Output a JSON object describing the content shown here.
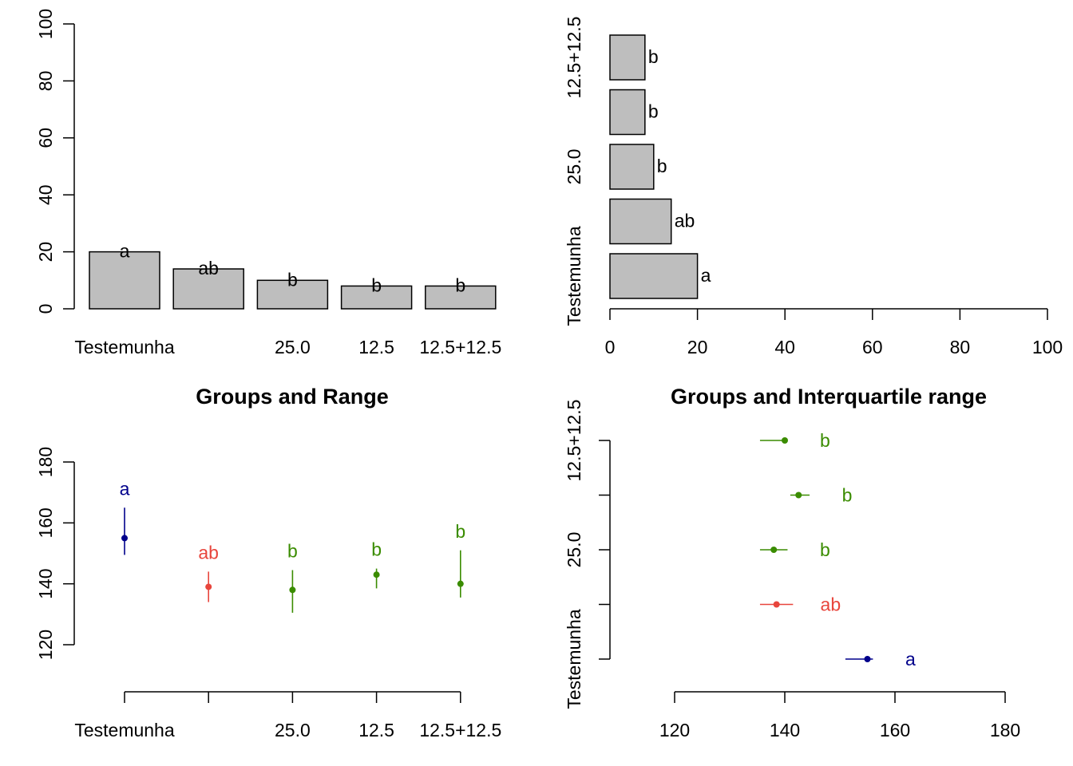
{
  "chart_data": [
    {
      "type": "bar",
      "orientation": "vertical",
      "categories": [
        "Testemunha",
        "",
        "25.0",
        "12.5",
        "12.5+12.5"
      ],
      "values": [
        20,
        14,
        10,
        8,
        8
      ],
      "groups": [
        "a",
        "ab",
        "b",
        "b",
        "b"
      ],
      "ylim": [
        0,
        100
      ],
      "yticks": [
        "0",
        "20",
        "40",
        "60",
        "80",
        "100"
      ],
      "bar_color": "#bebebe"
    },
    {
      "type": "bar",
      "orientation": "horizontal",
      "categories": [
        "Testemunha",
        "",
        "25.0",
        "",
        "12.5+12.5"
      ],
      "values": [
        20,
        14,
        10,
        8,
        8
      ],
      "groups": [
        "a",
        "ab",
        "b",
        "b",
        "b"
      ],
      "xlim": [
        0,
        100
      ],
      "xticks": [
        "0",
        "20",
        "40",
        "60",
        "80",
        "100"
      ],
      "bar_color": "#bebebe"
    },
    {
      "type": "scatter",
      "title": "Groups and Range",
      "categories": [
        "Testemunha",
        "",
        "25.0",
        "12.5",
        "12.5+12.5"
      ],
      "points": [
        {
          "value": 155,
          "low": 149.5,
          "high": 165,
          "group": "a",
          "color": "#00008b"
        },
        {
          "value": 139,
          "low": 134,
          "high": 144,
          "group": "ab",
          "color": "#e8453c"
        },
        {
          "value": 138,
          "low": 130.5,
          "high": 144.5,
          "group": "b",
          "color": "#3a8c00"
        },
        {
          "value": 143,
          "low": 138.5,
          "high": 145,
          "group": "b",
          "color": "#3a8c00"
        },
        {
          "value": 140,
          "low": 135.5,
          "high": 151,
          "group": "b",
          "color": "#3a8c00"
        }
      ],
      "ylim": [
        120,
        180
      ],
      "yticks": [
        "120",
        "140",
        "160",
        "180"
      ]
    },
    {
      "type": "scatter",
      "orientation": "horizontal",
      "title": "Groups and Interquartile range",
      "categories": [
        "Testemunha",
        "",
        "25.0",
        "",
        "12.5+12.5"
      ],
      "points": [
        {
          "value": 155,
          "low": 151,
          "high": 156,
          "group": "a",
          "color": "#00008b"
        },
        {
          "value": 138.5,
          "low": 135.5,
          "high": 141.5,
          "group": "ab",
          "color": "#e8453c"
        },
        {
          "value": 138,
          "low": 135.5,
          "high": 140.5,
          "group": "b",
          "color": "#3a8c00"
        },
        {
          "value": 142.5,
          "low": 141,
          "high": 144.5,
          "group": "b",
          "color": "#3a8c00"
        },
        {
          "value": 140,
          "low": 135.5,
          "high": 140.5,
          "group": "b",
          "color": "#3a8c00"
        }
      ],
      "xlim": [
        120,
        180
      ],
      "xticks": [
        "120",
        "140",
        "160",
        "180"
      ]
    }
  ]
}
